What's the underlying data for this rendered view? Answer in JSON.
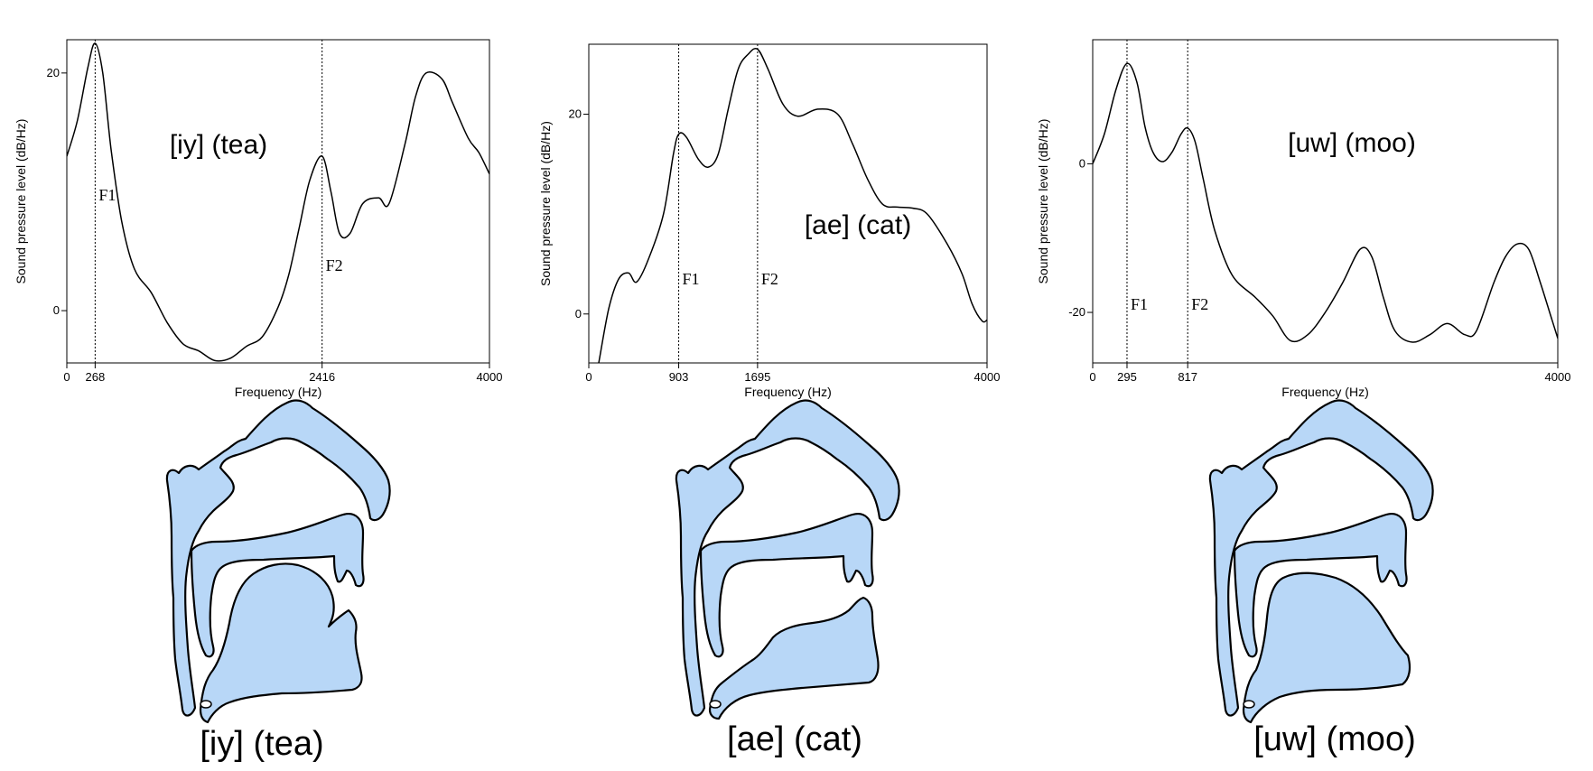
{
  "chart_data": [
    {
      "type": "line",
      "vowel_label": "[iy]  (tea)",
      "xlabel": "Frequency (Hz)",
      "ylabel": "Sound pressure level (dB/Hz)",
      "xlim": [
        0,
        4000
      ],
      "ylim": [
        -4.4,
        22.8
      ],
      "xticks": [
        0,
        268,
        2416,
        4000
      ],
      "yticks": [
        0,
        20
      ],
      "formants": [
        {
          "label": "F1",
          "x": 268
        },
        {
          "label": "F2",
          "x": 2416
        }
      ],
      "series": [
        {
          "x": [
            0,
            100,
            200,
            268,
            340,
            420,
            520,
            640,
            800,
            950,
            1100,
            1250,
            1400,
            1550,
            1700,
            1850,
            2000,
            2100,
            2200,
            2300,
            2416,
            2500,
            2580,
            2680,
            2800,
            2950,
            3050,
            3200,
            3300,
            3400,
            3550,
            3650,
            3800,
            3900,
            4000
          ],
          "y": [
            13,
            16,
            20.5,
            22.5,
            20,
            13.5,
            7.5,
            3.5,
            1.5,
            -1,
            -2.8,
            -3.4,
            -4.2,
            -4.0,
            -3.0,
            -2.2,
            0.3,
            3,
            7,
            11,
            13,
            10,
            6.5,
            6.5,
            9,
            9.5,
            9,
            14,
            18,
            20,
            19.5,
            17.5,
            14.5,
            13.3,
            11.5
          ]
        }
      ]
    },
    {
      "type": "line",
      "vowel_label": "[ae] (cat)",
      "xlabel": "Frequency (Hz)",
      "ylabel": "Sound pressure level (dB/Hz)",
      "xlim": [
        0,
        4000
      ],
      "ylim": [
        -4.9,
        27
      ],
      "xticks": [
        0,
        903,
        1695,
        4000
      ],
      "yticks": [
        0,
        20
      ],
      "formants": [
        {
          "label": "F1",
          "x": 903
        },
        {
          "label": "F2",
          "x": 1695
        }
      ],
      "series": [
        {
          "x": [
            100,
            200,
            300,
            400,
            480,
            600,
            750,
            850,
            903,
            980,
            1100,
            1200,
            1300,
            1400,
            1500,
            1600,
            1695,
            1800,
            1950,
            2100,
            2300,
            2500,
            2650,
            2800,
            2950,
            3100,
            3250,
            3400,
            3600,
            3750,
            3850,
            3950,
            4000
          ],
          "y": [
            -4.9,
            0.5,
            3.5,
            4.1,
            3.2,
            5.5,
            10,
            16,
            18,
            17.7,
            15.5,
            14.7,
            16,
            20.5,
            24.5,
            26,
            26.5,
            24.5,
            21,
            19.8,
            20.5,
            20,
            17,
            13.5,
            11,
            10.7,
            10.6,
            10,
            7,
            4,
            1,
            -0.7,
            -0.6
          ]
        }
      ]
    },
    {
      "type": "line",
      "vowel_label": "[uw]  (moo)",
      "xlabel": "Frequency (Hz)",
      "ylabel": "Sound pressure level (dB/Hz)",
      "xlim": [
        0,
        4000
      ],
      "ylim": [
        -26.8,
        16.7
      ],
      "xticks": [
        0,
        295,
        817,
        4000
      ],
      "yticks": [
        -20,
        0
      ],
      "formants": [
        {
          "label": "F1",
          "x": 295
        },
        {
          "label": "F2",
          "x": 817
        }
      ],
      "series": [
        {
          "x": [
            0,
            100,
            200,
            295,
            380,
            450,
            520,
            600,
            680,
            760,
            817,
            880,
            950,
            1050,
            1200,
            1400,
            1550,
            1700,
            1850,
            2000,
            2150,
            2300,
            2400,
            2500,
            2600,
            2750,
            2900,
            3050,
            3200,
            3300,
            3450,
            3550,
            3650,
            3750,
            3850,
            3950,
            4000
          ],
          "y": [
            0,
            4,
            10,
            13.5,
            11,
            5,
            1.5,
            0.3,
            1.5,
            4,
            4.8,
            3,
            -2,
            -9,
            -15,
            -18,
            -20.5,
            -23.8,
            -23,
            -20,
            -16,
            -11.5,
            -12.5,
            -18,
            -22.5,
            -24,
            -23,
            -21.5,
            -23,
            -22.5,
            -16,
            -12.5,
            -10.8,
            -11.5,
            -16,
            -21,
            -23.5
          ]
        }
      ]
    }
  ],
  "captions": [
    "[iy]  (tea)",
    "[ae] (cat)",
    "[uw]  (moo)"
  ]
}
